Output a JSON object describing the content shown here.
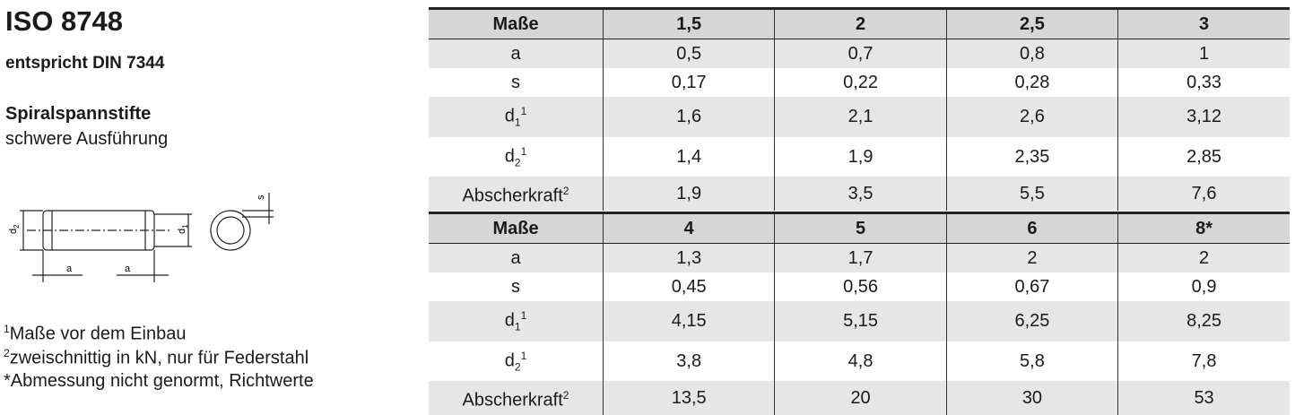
{
  "header": {
    "title": "ISO 8748",
    "subtitle": "entspricht DIN 7344",
    "name": "Spiralspannstifte",
    "variant": "schwere Ausführung"
  },
  "drawing": {
    "labels": [
      {
        "base": "d",
        "sub": "2"
      },
      {
        "base": "d",
        "sub": "1"
      },
      {
        "base": "a"
      },
      {
        "base": "a"
      },
      {
        "base": "s"
      }
    ]
  },
  "footnotes": [
    {
      "mark": "1",
      "text": "Maße vor dem Einbau"
    },
    {
      "mark": "2",
      "text": "zweischnittig in kN, nur für Federstahl"
    },
    {
      "mark": "",
      "text": "*Abmessung nicht genormt, Richtwerte"
    }
  ],
  "tables": [
    {
      "header": [
        "Maße",
        "1,5",
        "2",
        "2,5",
        "3"
      ],
      "rows": [
        {
          "label": {
            "base": "a"
          },
          "values": [
            "0,5",
            "0,7",
            "0,8",
            "1"
          ]
        },
        {
          "label": {
            "base": "s"
          },
          "values": [
            "0,17",
            "0,22",
            "0,28",
            "0,33"
          ]
        },
        {
          "label": {
            "base": "d",
            "sub": "1",
            "sup": "1"
          },
          "values": [
            "1,6",
            "2,1",
            "2,6",
            "3,12"
          ]
        },
        {
          "label": {
            "base": "d",
            "sub": "2",
            "sup": "1"
          },
          "values": [
            "1,4",
            "1,9",
            "2,35",
            "2,85"
          ]
        },
        {
          "label": {
            "base": "Abscherkraft",
            "sup": "2"
          },
          "values": [
            "1,9",
            "3,5",
            "5,5",
            "7,6"
          ]
        }
      ]
    },
    {
      "header": [
        "Maße",
        "4",
        "5",
        "6",
        "8*"
      ],
      "rows": [
        {
          "label": {
            "base": "a"
          },
          "values": [
            "1,3",
            "1,7",
            "2",
            "2"
          ]
        },
        {
          "label": {
            "base": "s"
          },
          "values": [
            "0,45",
            "0,56",
            "0,67",
            "0,9"
          ]
        },
        {
          "label": {
            "base": "d",
            "sub": "1",
            "sup": "1"
          },
          "values": [
            "4,15",
            "5,15",
            "6,25",
            "8,25"
          ]
        },
        {
          "label": {
            "base": "d",
            "sub": "2",
            "sup": "1"
          },
          "values": [
            "3,8",
            "4,8",
            "5,8",
            "7,8"
          ]
        },
        {
          "label": {
            "base": "Abscherkraft",
            "sup": "2"
          },
          "values": [
            "13,5",
            "20",
            "30",
            "53"
          ]
        }
      ]
    }
  ]
}
